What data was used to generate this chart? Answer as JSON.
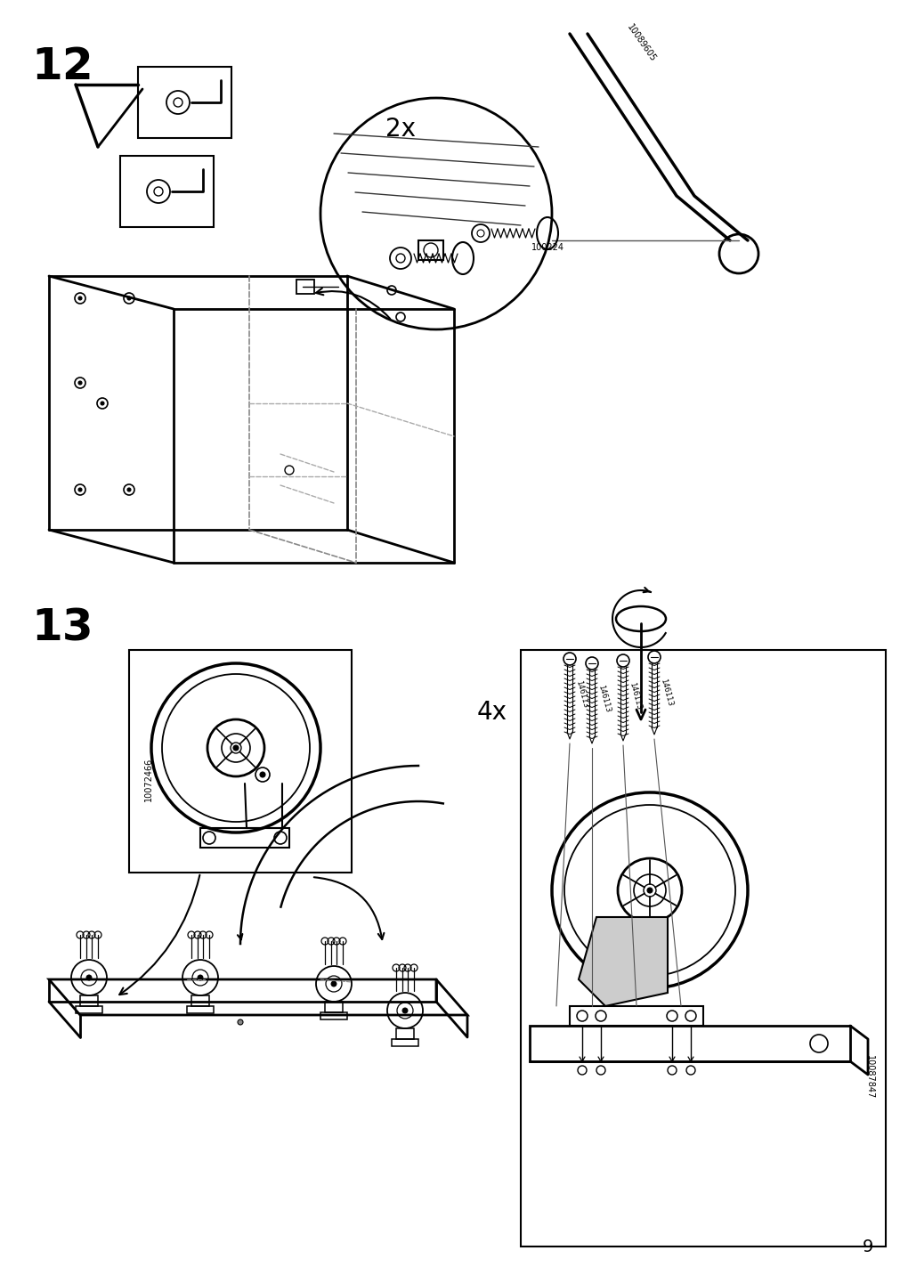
{
  "page_number": "9",
  "step12_label": "12",
  "step13_label": "13",
  "multiplier_12": "2x",
  "multiplier_13": "4x",
  "part_code_12": "100224",
  "part_code_12b": "10089605",
  "part_code_13a": "10072466",
  "part_code_13b": "10087847",
  "part_code_screw": "146113",
  "bg_color": "#ffffff",
  "line_color": "#000000",
  "step_label_fontsize": 36,
  "multiplier_fontsize": 20,
  "page_num_fontsize": 14
}
